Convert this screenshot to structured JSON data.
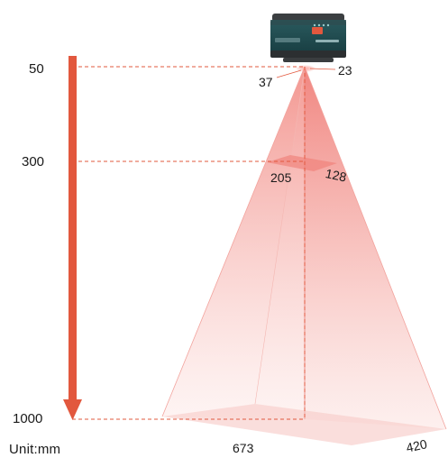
{
  "distances": [
    {
      "value": "50"
    },
    {
      "value": "300"
    },
    {
      "value": "1000"
    }
  ],
  "fov": {
    "d50": {
      "width": "37",
      "height": "23"
    },
    "d300": {
      "width": "205",
      "height": "128"
    },
    "d1000": {
      "width": "673",
      "height": "420"
    }
  },
  "unit_label": "Unit:mm",
  "colors": {
    "arrow": "#e2583e",
    "dash": "#e2583e",
    "beam": "#f2908a",
    "device_body": "#1e4a4f",
    "device_top": "#3b3f41"
  }
}
